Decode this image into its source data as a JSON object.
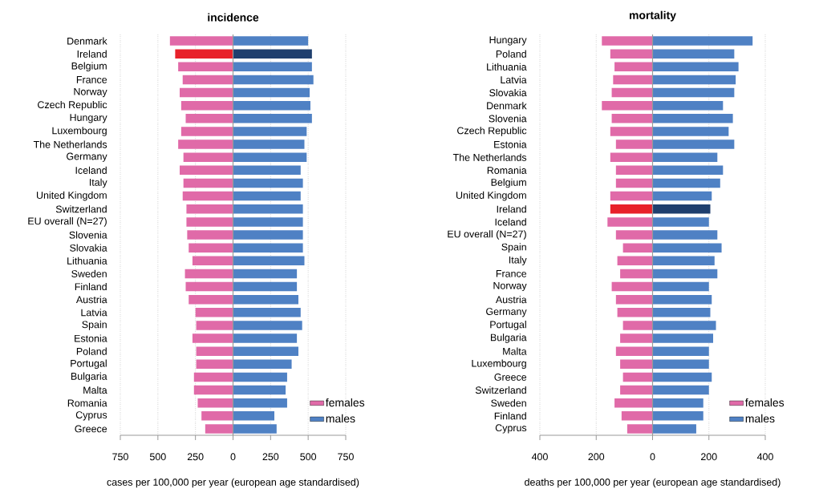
{
  "chart_data": [
    {
      "type": "bar",
      "orientation": "horizontal",
      "title": "incidence",
      "xlabel": "cases per 100,000 per year (european age standardised)",
      "categories": [
        "Denmark",
        "Ireland",
        "Belgium",
        "France",
        "Norway",
        "Czech Republic",
        "Hungary",
        "Luxembourg",
        "The Netherlands",
        "Germany",
        "Iceland",
        "Italy",
        "United Kingdom",
        "Switzerland",
        "EU overall (N=27)",
        "Slovenia",
        "Slovakia",
        "Lithuania",
        "Sweden",
        "Finland",
        "Austria",
        "Latvia",
        "Spain",
        "Estonia",
        "Poland",
        "Portugal",
        "Bulgaria",
        "Malta",
        "Romania",
        "Cyprus",
        "Greece"
      ],
      "series": [
        {
          "name": "females",
          "color": "#e06aa8",
          "colors": [
            "#e06aa8",
            "#e8212a",
            "#e06aa8",
            "#e06aa8",
            "#e06aa8",
            "#e06aa8",
            "#e06aa8",
            "#e06aa8",
            "#e06aa8",
            "#e06aa8",
            "#e06aa8",
            "#e06aa8",
            "#e06aa8",
            "#e06aa8",
            "#e06aa8",
            "#e06aa8",
            "#e06aa8",
            "#e06aa8",
            "#e06aa8",
            "#e06aa8",
            "#e06aa8",
            "#e06aa8",
            "#e06aa8",
            "#e06aa8",
            "#e06aa8",
            "#e06aa8",
            "#e06aa8",
            "#e06aa8",
            "#e06aa8",
            "#e06aa8",
            "#e06aa8"
          ],
          "values": [
            -420,
            -385,
            -365,
            -335,
            -355,
            -345,
            -315,
            -345,
            -365,
            -330,
            -355,
            -330,
            -335,
            -310,
            -310,
            -305,
            -295,
            -270,
            -320,
            -315,
            -295,
            -250,
            -245,
            -270,
            -245,
            -245,
            -260,
            -260,
            -235,
            -210,
            -185
          ]
        },
        {
          "name": "males",
          "color": "#4f81c4",
          "colors": [
            "#4f81c4",
            "#1f3f6e",
            "#4f81c4",
            "#4f81c4",
            "#4f81c4",
            "#4f81c4",
            "#4f81c4",
            "#4f81c4",
            "#4f81c4",
            "#4f81c4",
            "#4f81c4",
            "#4f81c4",
            "#4f81c4",
            "#4f81c4",
            "#4f81c4",
            "#4f81c4",
            "#4f81c4",
            "#4f81c4",
            "#4f81c4",
            "#4f81c4",
            "#4f81c4",
            "#4f81c4",
            "#4f81c4",
            "#4f81c4",
            "#4f81c4",
            "#4f81c4",
            "#4f81c4",
            "#4f81c4",
            "#4f81c4",
            "#4f81c4",
            "#4f81c4"
          ],
          "values": [
            500,
            525,
            525,
            535,
            510,
            515,
            525,
            490,
            475,
            490,
            450,
            465,
            450,
            465,
            465,
            465,
            465,
            475,
            425,
            425,
            435,
            450,
            460,
            425,
            435,
            390,
            360,
            350,
            360,
            275,
            290
          ]
        }
      ],
      "xlim": [
        -750,
        750
      ],
      "xticks": [
        {
          "value": -750,
          "label": "750"
        },
        {
          "value": -500,
          "label": "500"
        },
        {
          "value": -250,
          "label": "250"
        },
        0,
        250,
        500,
        750
      ],
      "grid": "x",
      "legend": "bottom right",
      "stacked": true
    },
    {
      "type": "bar",
      "orientation": "horizontal",
      "title": "mortality",
      "xlabel": "deaths per 100,000 per year (european age standardised)",
      "categories": [
        "Hungary",
        "Poland",
        "Lithuania",
        "Latvia",
        "Slovakia",
        "Denmark",
        "Slovenia",
        "Czech Republic",
        "Estonia",
        "The Netherlands",
        "Romania",
        "Belgium",
        "United Kingdom",
        "Ireland",
        "Iceland",
        "EU overall (N=27)",
        "Spain",
        "Italy",
        "France",
        "Norway",
        "Austria",
        "Germany",
        "Portugal",
        "Bulgaria",
        "Malta",
        "Luxembourg",
        "Greece",
        "Switzerland",
        "Sweden",
        "Finland",
        "Cyprus"
      ],
      "series": [
        {
          "name": "females",
          "color": "#e06aa8",
          "colors": [
            "#e06aa8",
            "#e06aa8",
            "#e06aa8",
            "#e06aa8",
            "#e06aa8",
            "#e06aa8",
            "#e06aa8",
            "#e06aa8",
            "#e06aa8",
            "#e06aa8",
            "#e06aa8",
            "#e06aa8",
            "#e06aa8",
            "#e8212a",
            "#e06aa8",
            "#e06aa8",
            "#e06aa8",
            "#e06aa8",
            "#e06aa8",
            "#e06aa8",
            "#e06aa8",
            "#e06aa8",
            "#e06aa8",
            "#e06aa8",
            "#e06aa8",
            "#e06aa8",
            "#e06aa8",
            "#e06aa8",
            "#e06aa8",
            "#e06aa8",
            "#e06aa8"
          ],
          "values": [
            -180,
            -150,
            -135,
            -140,
            -145,
            -180,
            -145,
            -150,
            -130,
            -150,
            -130,
            -130,
            -150,
            -150,
            -160,
            -130,
            -105,
            -125,
            -115,
            -145,
            -130,
            -125,
            -105,
            -115,
            -130,
            -115,
            -105,
            -115,
            -135,
            -110,
            -90
          ]
        },
        {
          "name": "males",
          "color": "#4f81c4",
          "colors": [
            "#4f81c4",
            "#4f81c4",
            "#4f81c4",
            "#4f81c4",
            "#4f81c4",
            "#4f81c4",
            "#4f81c4",
            "#4f81c4",
            "#4f81c4",
            "#4f81c4",
            "#4f81c4",
            "#4f81c4",
            "#4f81c4",
            "#1f3f6e",
            "#4f81c4",
            "#4f81c4",
            "#4f81c4",
            "#4f81c4",
            "#4f81c4",
            "#4f81c4",
            "#4f81c4",
            "#4f81c4",
            "#4f81c4",
            "#4f81c4",
            "#4f81c4",
            "#4f81c4",
            "#4f81c4",
            "#4f81c4",
            "#4f81c4",
            "#4f81c4",
            "#4f81c4"
          ],
          "values": [
            355,
            290,
            305,
            295,
            290,
            250,
            285,
            270,
            290,
            230,
            250,
            240,
            210,
            205,
            200,
            230,
            245,
            220,
            230,
            200,
            210,
            205,
            225,
            215,
            200,
            200,
            210,
            200,
            180,
            180,
            155
          ]
        }
      ],
      "xlim": [
        -400,
        400
      ],
      "xticks": [
        {
          "value": -400,
          "label": "400"
        },
        {
          "value": -200,
          "label": "200"
        },
        0,
        200,
        400
      ],
      "grid": "x",
      "legend": "bottom right",
      "stacked": true
    }
  ]
}
